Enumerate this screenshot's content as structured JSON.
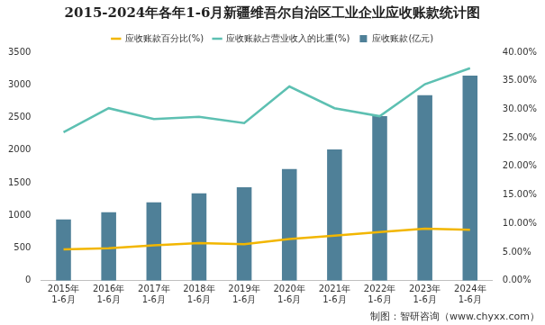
{
  "chart_data": {
    "type": "bar",
    "title": "2015-2024年各年1-6月新疆维吾尔自治区工业企业应收账款统计图",
    "source": "制图：智研咨询（www.chyxx.com）",
    "categories": [
      [
        "2015年",
        "1-6月"
      ],
      [
        "2016年",
        "1-6月"
      ],
      [
        "2017年",
        "1-6月"
      ],
      [
        "2018年",
        "1-6月"
      ],
      [
        "2019年",
        "1-6月"
      ],
      [
        "2020年",
        "1-6月"
      ],
      [
        "2021年",
        "1-6月"
      ],
      [
        "2022年",
        "1-6月"
      ],
      [
        "2023年",
        "1-6月"
      ],
      [
        "2024年",
        "1-6月"
      ]
    ],
    "series": [
      {
        "name": "应收账款(亿元)",
        "type": "bar",
        "color": "#4f8098",
        "values": [
          940,
          1050,
          1200,
          1340,
          1430,
          1710,
          2010,
          2520,
          2840,
          3140
        ]
      },
      {
        "name": "应收账款百分比(%)",
        "type": "line",
        "color": "#f2b600",
        "axis": "y2",
        "values": [
          5.5,
          5.7,
          6.2,
          6.6,
          6.4,
          7.3,
          7.9,
          8.5,
          9.1,
          8.9
        ]
      },
      {
        "name": "应收账款占营业收入的比重(%)",
        "type": "line",
        "color": "#5dc0b2",
        "axis": "y2",
        "values": [
          26.0,
          30.2,
          28.3,
          28.7,
          27.6,
          34.0,
          30.2,
          28.8,
          34.4,
          37.2
        ]
      }
    ],
    "ylim": [
      0,
      3500
    ],
    "yticks": [
      0,
      500,
      1000,
      1500,
      2000,
      2500,
      3000,
      3500
    ],
    "y2lim": [
      0,
      40
    ],
    "y2ticks": [
      {
        "value": 0,
        "label": "0.00%"
      },
      {
        "value": 5,
        "label": "5.00%"
      },
      {
        "value": 10,
        "label": "10.00%"
      },
      {
        "value": 15,
        "label": "15.00%"
      },
      {
        "value": 20,
        "label": "20.00%"
      },
      {
        "value": 25,
        "label": "25.00%"
      },
      {
        "value": 30,
        "label": "30.00%"
      },
      {
        "value": 35,
        "label": "35.00%"
      },
      {
        "value": 40,
        "label": "40.00%"
      }
    ],
    "grid": false,
    "legend": "top"
  }
}
